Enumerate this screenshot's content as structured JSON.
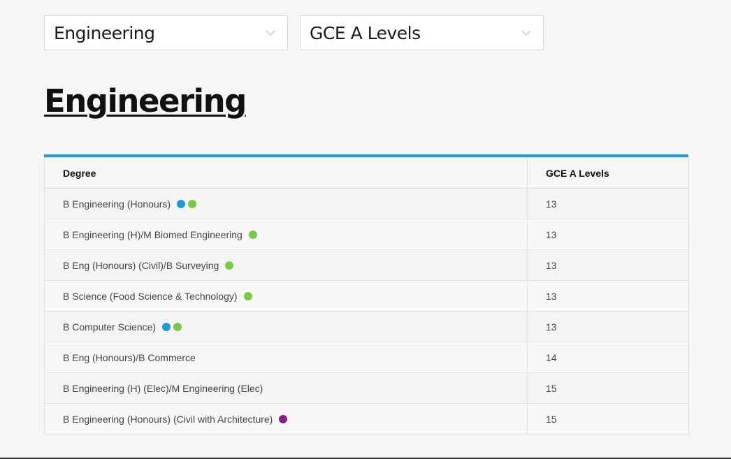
{
  "filters": {
    "faculty": {
      "value": "Engineering"
    },
    "qualification": {
      "value": "GCE A Levels"
    }
  },
  "page_title": "Engineering",
  "table": {
    "headers": [
      "Degree",
      "GCE A Levels"
    ],
    "rows": [
      {
        "degree": "B Engineering (Honours)",
        "score": "13",
        "dots": [
          "#1e9bd7",
          "#7ac943"
        ]
      },
      {
        "degree": "B Engineering (H)/M Biomed Engineering",
        "score": "13",
        "dots": [
          "#7ac943"
        ]
      },
      {
        "degree": "B Eng (Honours) (Civil)/B Surveying",
        "score": "13",
        "dots": [
          "#7ac943"
        ]
      },
      {
        "degree": "B Science (Food Science & Technology)",
        "score": "13",
        "dots": [
          "#7ac943"
        ]
      },
      {
        "degree": "B Computer Science)",
        "score": "13",
        "dots": [
          "#1e9bd7",
          "#7ac943"
        ]
      },
      {
        "degree": "B Eng (Honours)/B Commerce",
        "score": "14",
        "dots": []
      },
      {
        "degree": "B Engineering (H) (Elec)/M Engineering (Elec)",
        "score": "15",
        "dots": []
      },
      {
        "degree": "B Engineering (Honours) (Civil with Architecture)",
        "score": "15",
        "dots": [
          "#8b1a89"
        ]
      }
    ]
  },
  "colors": {
    "accent": "#1e9bd7",
    "dot_blue": "#1e9bd7",
    "dot_green": "#7ac943",
    "dot_purple": "#8b1a89"
  },
  "icons": {
    "dropdown": "chevron-down-icon",
    "indicator": "dot-icon"
  }
}
